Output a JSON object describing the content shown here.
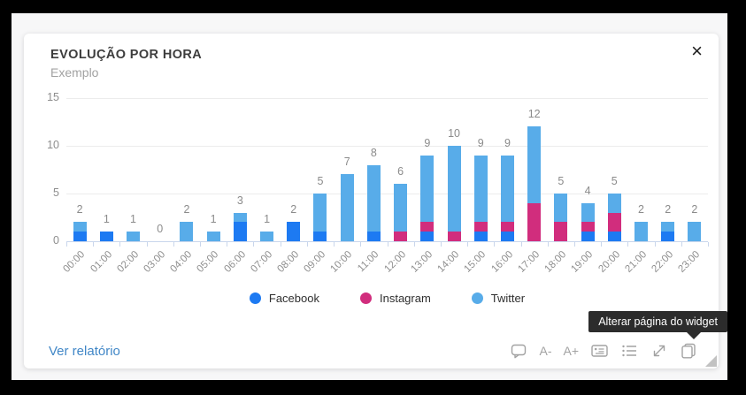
{
  "widget": {
    "title": "EVOLUÇÃO POR HORA",
    "subtitle": "Exemplo",
    "close_label": "×",
    "footer_link": "Ver relatório"
  },
  "page": {
    "tooltip": "Alterar página do widget"
  },
  "toolbar": {
    "font_decrease_label": "A-",
    "font_increase_label": "A+",
    "icon_names": [
      "comment-icon",
      "font-decrease",
      "font-increase",
      "details-card-icon",
      "list-icon",
      "expand-icon",
      "change-widget-page-icon"
    ]
  },
  "chart_data": {
    "type": "bar",
    "stacked": true,
    "title": "EVOLUÇÃO POR HORA",
    "subtitle": "Exemplo",
    "categories": [
      "00:00",
      "01:00",
      "02:00",
      "03:00",
      "04:00",
      "05:00",
      "06:00",
      "07:00",
      "08:00",
      "09:00",
      "10:00",
      "11:00",
      "12:00",
      "13:00",
      "14:00",
      "15:00",
      "16:00",
      "17:00",
      "18:00",
      "19:00",
      "20:00",
      "21:00",
      "22:00",
      "23:00"
    ],
    "series": [
      {
        "name": "Facebook",
        "color": "#1d7af2",
        "values": [
          1,
          1,
          0,
          0,
          0,
          0,
          2,
          0,
          2,
          1,
          0,
          1,
          0,
          1,
          0,
          1,
          1,
          0,
          0,
          1,
          1,
          0,
          1,
          0
        ]
      },
      {
        "name": "Instagram",
        "color": "#d12d7d",
        "values": [
          0,
          0,
          0,
          0,
          0,
          0,
          0,
          0,
          0,
          0,
          0,
          0,
          1,
          1,
          1,
          1,
          1,
          4,
          2,
          1,
          2,
          0,
          0,
          0
        ]
      },
      {
        "name": "Twitter",
        "color": "#58ace9",
        "values": [
          1,
          0,
          1,
          0,
          2,
          1,
          1,
          1,
          0,
          4,
          7,
          7,
          5,
          7,
          9,
          7,
          7,
          8,
          3,
          2,
          2,
          2,
          1,
          2
        ]
      }
    ],
    "totals": [
      2,
      1,
      1,
      0,
      2,
      1,
      3,
      1,
      2,
      5,
      7,
      8,
      6,
      9,
      10,
      9,
      9,
      12,
      5,
      4,
      5,
      2,
      2,
      2
    ],
    "y_ticks": [
      0,
      5,
      10,
      15
    ],
    "ylim": [
      0,
      15
    ],
    "grid": true,
    "legend_position": "bottom"
  }
}
